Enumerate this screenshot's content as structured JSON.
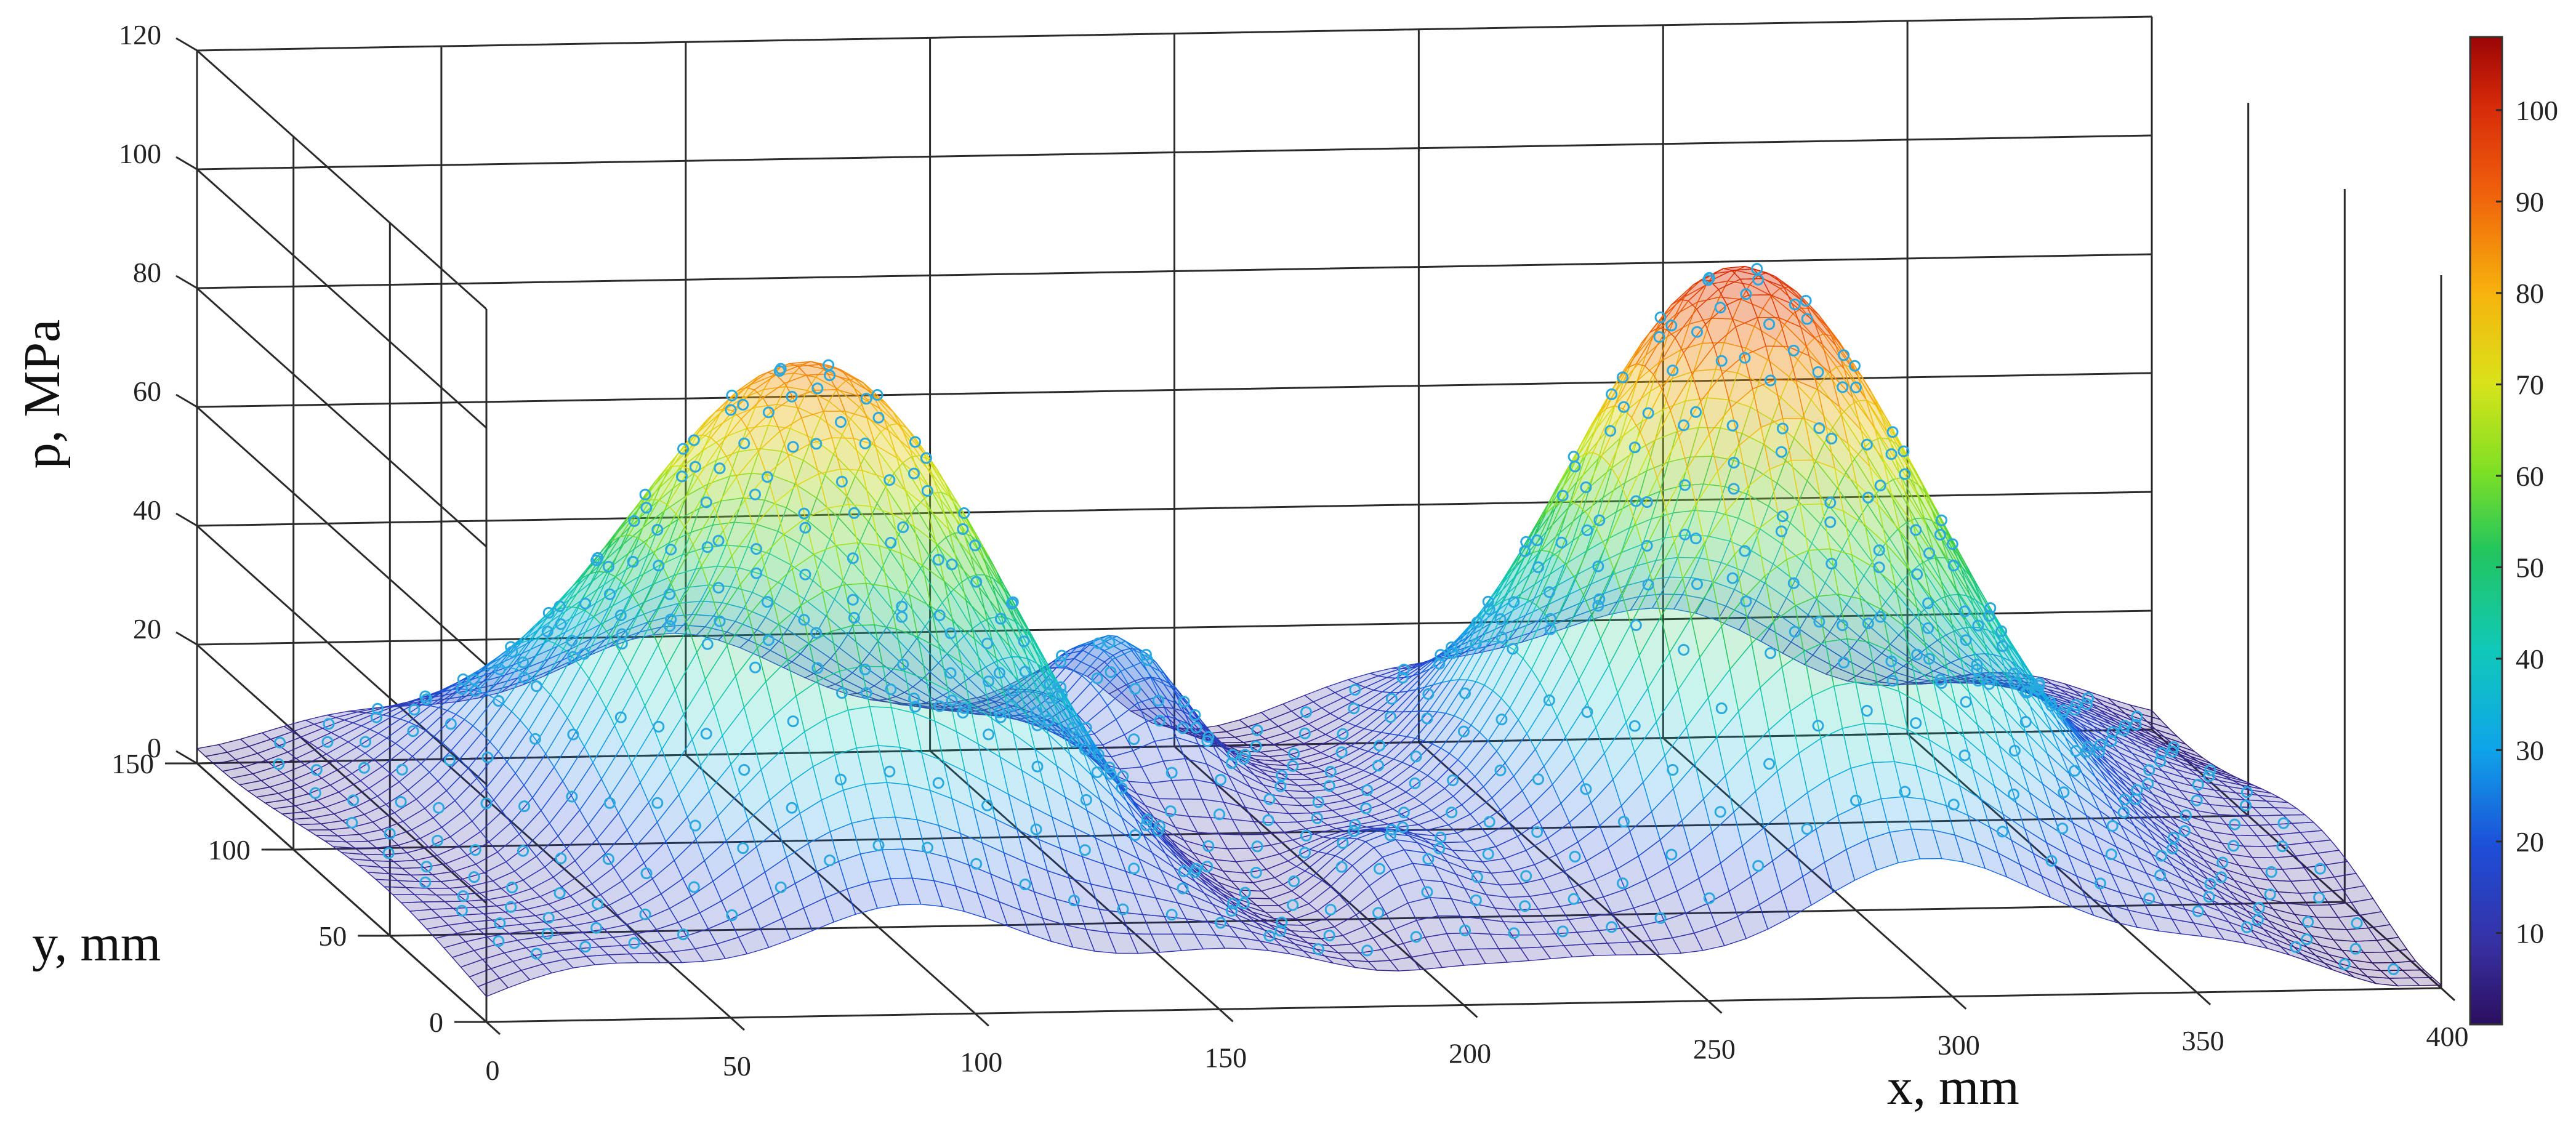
{
  "chart_data": {
    "type": "surface",
    "title": "",
    "xlabel": "x, mm",
    "ylabel": "y, mm",
    "zlabel": "p, MPa",
    "xlim": [
      0,
      400
    ],
    "ylim": [
      0,
      150
    ],
    "zlim": [
      0,
      120
    ],
    "x_ticks": [
      "0",
      "50",
      "100",
      "150",
      "200",
      "250",
      "300",
      "350",
      "400"
    ],
    "y_ticks": [
      "0",
      "50",
      "100",
      "150"
    ],
    "z_ticks": [
      "0",
      "20",
      "40",
      "60",
      "80",
      "100",
      "120"
    ],
    "colorbar": {
      "min": 0,
      "max": 108,
      "ticks": [
        "10",
        "20",
        "30",
        "40",
        "50",
        "60",
        "70",
        "80",
        "90",
        "100"
      ],
      "colormap": "jet"
    },
    "grid": true,
    "measured_points_marker": "circle",
    "peaks": [
      {
        "x": 95,
        "y": 75,
        "p": 88
      },
      {
        "x": 290,
        "y": 75,
        "p": 102
      }
    ]
  }
}
